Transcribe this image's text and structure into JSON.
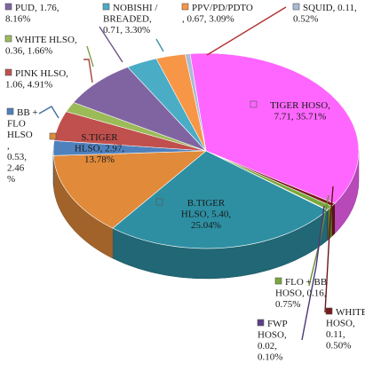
{
  "chart_data": {
    "type": "pie",
    "title": "",
    "three_d": true,
    "legend": "none (category names in data labels)",
    "slices": [
      {
        "name": "TIGER HOSO",
        "value": 7.71,
        "percent": "35.71%",
        "color": "#ff66ff",
        "label_lines": [
          "TIGER HOSO,",
          "7.71, 35.71%"
        ]
      },
      {
        "name": "WHITE HOSO",
        "value": 0.11,
        "percent": "0.50%",
        "color": "#7a1a1a",
        "label_lines": [
          "WHITE",
          "HOSO,",
          "0.11,",
          "0.50%"
        ]
      },
      {
        "name": "FLO + BB HOSO",
        "value": 0.16,
        "percent": "0.75%",
        "color": "#7aa83c",
        "label_lines": [
          "FLO + BB",
          "HOSO, 0.16,",
          "0.75%"
        ]
      },
      {
        "name": "FWP HOSO",
        "value": 0.02,
        "percent": "0.10%",
        "color": "#5b3f8a",
        "label_lines": [
          "FWP",
          "HOSO,",
          "0.02,",
          "0.10%"
        ]
      },
      {
        "name": "B.TIGER HLSO",
        "value": 5.4,
        "percent": "25.04%",
        "color": "#2e8fa3",
        "label_lines": [
          "B.TIGER",
          "HLSO, 5.40,",
          "25.04%"
        ]
      },
      {
        "name": "S.TIGER HLSO",
        "value": 2.97,
        "percent": "13.78%",
        "color": "#e08a3a",
        "label_lines": [
          "S.TIGER",
          "HLSO, 2.97,",
          "13.78%"
        ]
      },
      {
        "name": "BB + FLO HLSO",
        "value": 0.53,
        "percent": "2.46 %",
        "color": "#4f81bd",
        "label_lines": [
          "BB +",
          "FLO",
          "HLSO",
          ",",
          "0.53,",
          "2.46",
          "%"
        ]
      },
      {
        "name": "PINK HLSO",
        "value": 1.06,
        "percent": "4.91%",
        "color": "#c0504d",
        "label_lines": [
          "PINK HLSO,",
          "1.06, 4.91%"
        ]
      },
      {
        "name": "WHITE HLSO",
        "value": 0.36,
        "percent": "1.66%",
        "color": "#9bbb59",
        "label_lines": [
          "WHITE HLSO,",
          "0.36, 1.66%"
        ]
      },
      {
        "name": "PUD",
        "value": 1.76,
        "percent": "8.16%",
        "color": "#8064a2",
        "label_lines": [
          "PUD, 1.76,",
          "8.16%"
        ]
      },
      {
        "name": "NOBISHI / BREADED",
        "value": 0.71,
        "percent": "3.30%",
        "color": "#4bacc6",
        "label_lines": [
          "NOBISHI /",
          "BREADED,",
          "0.71, 3.30%"
        ]
      },
      {
        "name": "PPV/PD/PDTO",
        "value": 0.67,
        "percent": "3.09%",
        "color": "#f79646",
        "label_lines": [
          "PPV/PD/PDTO",
          ", 0.67, 3.09%"
        ]
      },
      {
        "name": "SQUID",
        "value": 0.11,
        "percent": "0.52%",
        "color": "#aabad7",
        "label_lines": [
          "SQUID, 0.11,",
          "0.52%"
        ]
      }
    ]
  }
}
